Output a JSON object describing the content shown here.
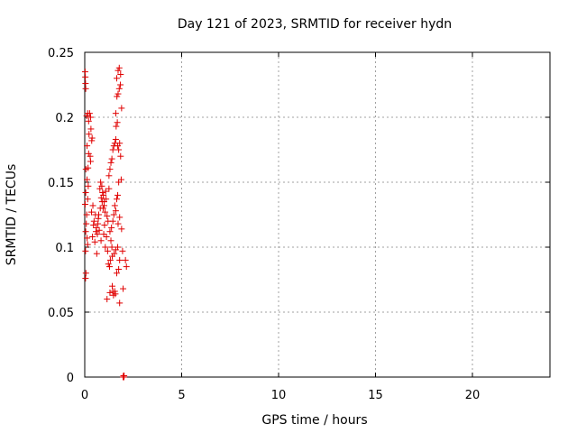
{
  "chart_data": {
    "type": "scatter",
    "title": "Day 121 of 2023, SRMTID for receiver hydn",
    "xlabel": "GPS time / hours",
    "ylabel": "SRMTID / TECUs",
    "xlim": [
      0,
      24
    ],
    "ylim": [
      0,
      0.25
    ],
    "xticks": [
      0,
      5,
      10,
      15,
      20
    ],
    "yticks": [
      0,
      0.05,
      0.1,
      0.15,
      0.2,
      0.25
    ],
    "xtick_labels": [
      "0",
      "5",
      "10",
      "15",
      "20"
    ],
    "ytick_labels": [
      "0",
      "0.05",
      "0.1",
      "0.15",
      "0.2",
      "0.25"
    ],
    "grid": true,
    "marker": "+",
    "color": "#e00000",
    "series": [
      {
        "name": "SRMTID",
        "points": [
          [
            0.02,
            0.235
          ],
          [
            0.03,
            0.231
          ],
          [
            0.04,
            0.226
          ],
          [
            0.05,
            0.222
          ],
          [
            0.1,
            0.201
          ],
          [
            0.15,
            0.203
          ],
          [
            0.2,
            0.197
          ],
          [
            0.25,
            0.203
          ],
          [
            0.3,
            0.2
          ],
          [
            0.32,
            0.191
          ],
          [
            0.22,
            0.187
          ],
          [
            0.38,
            0.184
          ],
          [
            0.36,
            0.182
          ],
          [
            0.12,
            0.178
          ],
          [
            0.2,
            0.172
          ],
          [
            0.28,
            0.17
          ],
          [
            0.17,
            0.161
          ],
          [
            0.3,
            0.166
          ],
          [
            0.06,
            0.16
          ],
          [
            0.12,
            0.152
          ],
          [
            0.18,
            0.147
          ],
          [
            0.05,
            0.142
          ],
          [
            0.15,
            0.137
          ],
          [
            0.02,
            0.133
          ],
          [
            0.1,
            0.125
          ],
          [
            0.08,
            0.118
          ],
          [
            0.05,
            0.112
          ],
          [
            0.12,
            0.107
          ],
          [
            0.15,
            0.102
          ],
          [
            0.04,
            0.097
          ],
          [
            0.06,
            0.08
          ],
          [
            0.04,
            0.076
          ],
          [
            0.35,
            0.127
          ],
          [
            0.42,
            0.132
          ],
          [
            0.48,
            0.12
          ],
          [
            0.55,
            0.125
          ],
          [
            0.6,
            0.115
          ],
          [
            0.65,
            0.11
          ],
          [
            0.7,
            0.122
          ],
          [
            0.4,
            0.108
          ],
          [
            0.45,
            0.117
          ],
          [
            0.52,
            0.104
          ],
          [
            0.58,
            0.112
          ],
          [
            0.62,
            0.095
          ],
          [
            0.68,
            0.118
          ],
          [
            0.72,
            0.125
          ],
          [
            0.75,
            0.113
          ],
          [
            0.8,
            0.13
          ],
          [
            0.85,
            0.138
          ],
          [
            0.9,
            0.135
          ],
          [
            0.92,
            0.142
          ],
          [
            0.95,
            0.13
          ],
          [
            0.78,
            0.145
          ],
          [
            0.82,
            0.15
          ],
          [
            0.88,
            0.147
          ],
          [
            0.96,
            0.14
          ],
          [
            1.0,
            0.132
          ],
          [
            1.05,
            0.127
          ],
          [
            1.08,
            0.143
          ],
          [
            1.1,
            0.137
          ],
          [
            1.15,
            0.124
          ],
          [
            1.2,
            0.12
          ],
          [
            1.25,
            0.145
          ],
          [
            1.3,
            0.112
          ],
          [
            1.35,
            0.105
          ],
          [
            1.4,
            0.1
          ],
          [
            1.02,
            0.117
          ],
          [
            1.12,
            0.108
          ],
          [
            1.18,
            0.097
          ],
          [
            1.22,
            0.087
          ],
          [
            1.28,
            0.085
          ],
          [
            1.32,
            0.09
          ],
          [
            1.0,
            0.135
          ],
          [
            0.98,
            0.11
          ],
          [
            0.84,
            0.105
          ],
          [
            1.06,
            0.1
          ],
          [
            1.15,
            0.06
          ],
          [
            1.3,
            0.065
          ],
          [
            1.42,
            0.07
          ],
          [
            1.45,
            0.066
          ],
          [
            1.48,
            0.063
          ],
          [
            1.55,
            0.066
          ],
          [
            1.58,
            0.064
          ],
          [
            1.42,
            0.093
          ],
          [
            1.52,
            0.095
          ],
          [
            1.6,
            0.098
          ],
          [
            1.7,
            0.1
          ],
          [
            1.75,
            0.083
          ],
          [
            1.8,
            0.09
          ],
          [
            1.65,
            0.08
          ],
          [
            1.38,
            0.115
          ],
          [
            1.45,
            0.12
          ],
          [
            1.5,
            0.125
          ],
          [
            1.55,
            0.132
          ],
          [
            1.6,
            0.128
          ],
          [
            1.65,
            0.137
          ],
          [
            1.7,
            0.14
          ],
          [
            1.25,
            0.155
          ],
          [
            1.3,
            0.16
          ],
          [
            1.35,
            0.165
          ],
          [
            1.4,
            0.168
          ],
          [
            1.45,
            0.175
          ],
          [
            1.5,
            0.178
          ],
          [
            1.55,
            0.18
          ],
          [
            1.6,
            0.183
          ],
          [
            1.7,
            0.178
          ],
          [
            1.75,
            0.175
          ],
          [
            1.8,
            0.18
          ],
          [
            1.85,
            0.17
          ],
          [
            1.62,
            0.193
          ],
          [
            1.68,
            0.196
          ],
          [
            1.6,
            0.203
          ],
          [
            1.66,
            0.216
          ],
          [
            1.72,
            0.218
          ],
          [
            1.78,
            0.222
          ],
          [
            1.84,
            0.225
          ],
          [
            1.65,
            0.23
          ],
          [
            1.72,
            0.236
          ],
          [
            1.78,
            0.238
          ],
          [
            1.85,
            0.233
          ],
          [
            1.9,
            0.207
          ],
          [
            1.88,
            0.152
          ],
          [
            1.75,
            0.15
          ],
          [
            1.8,
            0.123
          ],
          [
            1.72,
            0.118
          ],
          [
            1.9,
            0.114
          ],
          [
            1.95,
            0.097
          ],
          [
            2.1,
            0.09
          ],
          [
            2.15,
            0.085
          ],
          [
            1.98,
            0.068
          ],
          [
            1.8,
            0.057
          ],
          [
            1.98,
            0.0
          ],
          [
            2.0,
            0.0
          ],
          [
            2.02,
            0.0
          ],
          [
            2.03,
            0.001
          ],
          [
            2.0,
            0.001
          ]
        ]
      }
    ]
  }
}
